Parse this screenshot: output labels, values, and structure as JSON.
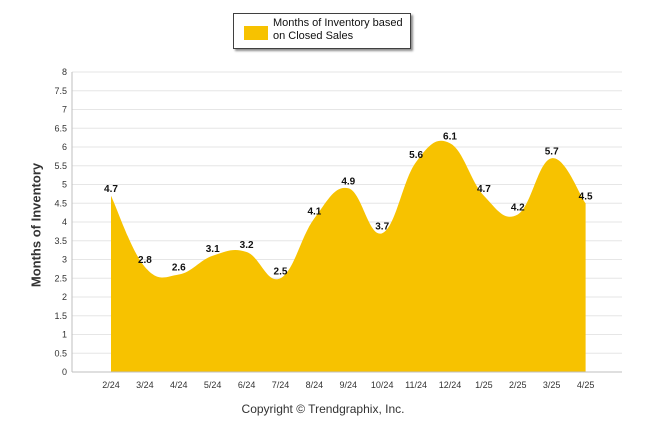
{
  "colors": {
    "fill": "#F7C200",
    "grid": "#e6e6e6",
    "axis": "#bfbfbf",
    "text": "#333333"
  },
  "chart_data": {
    "type": "area",
    "categories": [
      "2/24",
      "3/24",
      "4/24",
      "5/24",
      "6/24",
      "7/24",
      "8/24",
      "9/24",
      "10/24",
      "11/24",
      "12/24",
      "1/25",
      "2/25",
      "3/25",
      "4/25"
    ],
    "series": [
      {
        "name": "Months of Inventory based on Closed Sales",
        "values": [
          4.7,
          2.8,
          2.6,
          3.1,
          3.2,
          2.5,
          4.1,
          4.9,
          3.7,
          5.6,
          6.1,
          4.7,
          4.2,
          5.7,
          4.5
        ]
      }
    ],
    "data_labels": [
      "4.7",
      "2.8",
      "2.6",
      "3.1",
      "3.2",
      "2.5",
      "4.1",
      "4.9",
      "3.7",
      "5.6",
      "6.1",
      "4.7",
      "4.2",
      "5.7",
      "4.5"
    ],
    "ylabel": "Months of Inventory",
    "ylim": [
      0,
      8
    ],
    "yticks": [
      "0",
      "0.5",
      "1",
      "1.5",
      "2",
      "2.5",
      "3",
      "3.5",
      "4",
      "4.5",
      "5",
      "5.5",
      "6",
      "6.5",
      "7",
      "7.5",
      "8"
    ],
    "grid": true,
    "legend": "top-center"
  },
  "legend": {
    "label": "Months of Inventory based on Closed Sales"
  },
  "footer": {
    "copyright": "Copyright © Trendgraphix, Inc."
  }
}
